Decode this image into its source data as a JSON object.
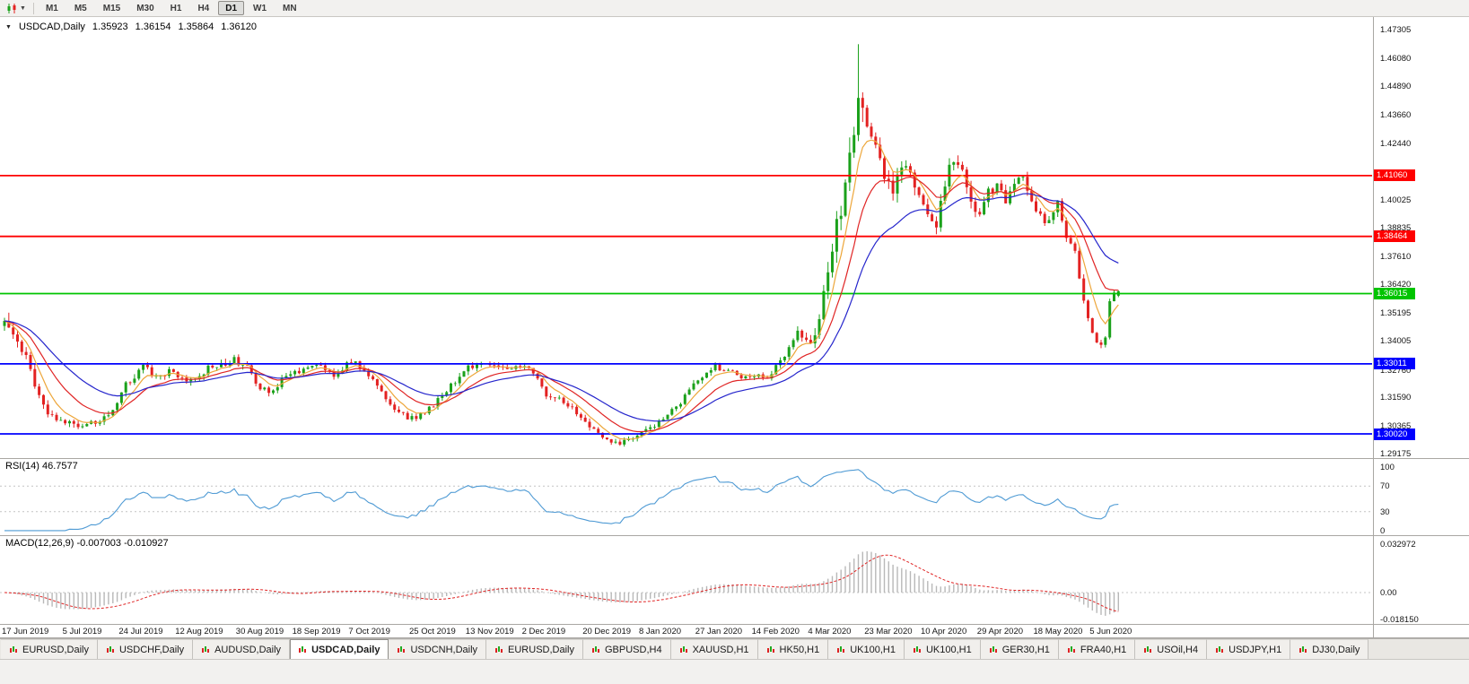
{
  "toolbar": {
    "timeframes": [
      {
        "label": "M1",
        "active": false
      },
      {
        "label": "M5",
        "active": false
      },
      {
        "label": "M15",
        "active": false
      },
      {
        "label": "M30",
        "active": false
      },
      {
        "label": "H1",
        "active": false
      },
      {
        "label": "H4",
        "active": false
      },
      {
        "label": "D1",
        "active": true
      },
      {
        "label": "W1",
        "active": false
      },
      {
        "label": "MN",
        "active": false
      }
    ]
  },
  "chart_header": {
    "symbol": "USDCAD,Daily",
    "open": "1.35923",
    "high": "1.36154",
    "low": "1.35864",
    "close": "1.36120"
  },
  "rsi_pane": {
    "title": "RSI(14) 46.7577",
    "period": 14,
    "levels": [
      70,
      30
    ],
    "scale": [
      "100",
      "70",
      "30",
      "0"
    ],
    "line_color": "#4e9ad4"
  },
  "macd_pane": {
    "title": "MACD(12,26,9) -0.007003 -0.010927",
    "fast": 12,
    "slow": 26,
    "signal": 9,
    "scale_max": "0.032972",
    "scale_zero": "0.00",
    "scale_min": "-0.018150",
    "histogram_color": "#b8b8b8",
    "signal_color": "#e02525"
  },
  "tabs": {
    "items": [
      {
        "label": "EURUSD,Daily",
        "active": false
      },
      {
        "label": "USDCHF,Daily",
        "active": false
      },
      {
        "label": "AUDUSD,Daily",
        "active": false
      },
      {
        "label": "USDCAD,Daily",
        "active": true
      },
      {
        "label": "USDCNH,Daily",
        "active": false
      },
      {
        "label": "EURUSD,Daily",
        "active": false
      },
      {
        "label": "GBPUSD,H4",
        "active": false
      },
      {
        "label": "XAUUSD,H1",
        "active": false
      },
      {
        "label": "HK50,H1",
        "active": false
      },
      {
        "label": "UK100,H1",
        "active": false
      },
      {
        "label": "UK100,H1",
        "active": false
      },
      {
        "label": "GER30,H1",
        "active": false
      },
      {
        "label": "FRA40,H1",
        "active": false
      },
      {
        "label": "USOil,H4",
        "active": false
      },
      {
        "label": "USDJPY,H1",
        "active": false
      },
      {
        "label": "DJ30,Daily",
        "active": false
      }
    ]
  },
  "chart_data": {
    "type": "candlestick",
    "title": "USDCAD Daily",
    "symbol": "USDCAD",
    "timeframe": "D1",
    "bars": 258,
    "seed": 20200612,
    "candle_up_color": "#1ba11b",
    "candle_down_color": "#e32222",
    "price_scale": {
      "top_value": 1.47305,
      "bottom_value": 1.29175,
      "ticks": [
        "1.47305",
        "1.46080",
        "1.44890",
        "1.43660",
        "1.42440",
        "1.40025",
        "1.38835",
        "1.37610",
        "1.36420",
        "1.35195",
        "1.34005",
        "1.32760",
        "1.31590",
        "1.30365",
        "1.29175"
      ]
    },
    "horizontal_lines": [
      {
        "value": 1.4106,
        "label": "1.41060",
        "color": "#fe0000"
      },
      {
        "value": 1.38464,
        "label": "1.38464",
        "color": "#fe0000"
      },
      {
        "value": 1.36015,
        "label": "1.36015",
        "color": "#00c400"
      },
      {
        "value": 1.33011,
        "label": "1.33011",
        "color": "#0000fe"
      },
      {
        "value": 1.3002,
        "label": "1.30020",
        "color": "#0000fe"
      }
    ],
    "moving_averages": [
      {
        "period": 6,
        "color": "#eda63a"
      },
      {
        "period": 14,
        "color": "#e02525"
      },
      {
        "period": 28,
        "color": "#2525cc"
      }
    ],
    "date_axis": [
      {
        "i": 0,
        "label": "17 Jun 2019"
      },
      {
        "i": 14,
        "label": "5 Jul 2019"
      },
      {
        "i": 27,
        "label": "24 Jul 2019"
      },
      {
        "i": 40,
        "label": "12 Aug 2019"
      },
      {
        "i": 54,
        "label": "30 Aug 2019"
      },
      {
        "i": 67,
        "label": "18 Sep 2019"
      },
      {
        "i": 80,
        "label": "7 Oct 2019"
      },
      {
        "i": 94,
        "label": "25 Oct 2019"
      },
      {
        "i": 107,
        "label": "13 Nov 2019"
      },
      {
        "i": 120,
        "label": "2 Dec 2019"
      },
      {
        "i": 134,
        "label": "20 Dec 2019"
      },
      {
        "i": 147,
        "label": "8 Jan 2020"
      },
      {
        "i": 160,
        "label": "27 Jan 2020"
      },
      {
        "i": 173,
        "label": "14 Feb 2020"
      },
      {
        "i": 186,
        "label": "4 Mar 2020"
      },
      {
        "i": 199,
        "label": "23 Mar 2020"
      },
      {
        "i": 212,
        "label": "10 Apr 2020"
      },
      {
        "i": 225,
        "label": "29 Apr 2020"
      },
      {
        "i": 238,
        "label": "18 May 2020"
      },
      {
        "i": 251,
        "label": "5 Jun 2020"
      }
    ],
    "price_path_anchors": [
      [
        0,
        1.3465,
        0.0038
      ],
      [
        2,
        1.343,
        0.0036
      ],
      [
        5,
        1.333,
        0.0034
      ],
      [
        8,
        1.316,
        0.003
      ],
      [
        11,
        1.307,
        0.0026
      ],
      [
        14,
        1.3055,
        0.0024
      ],
      [
        18,
        1.304,
        0.0024
      ],
      [
        22,
        1.306,
        0.0024
      ],
      [
        25,
        1.311,
        0.0026
      ],
      [
        28,
        1.321,
        0.0028
      ],
      [
        32,
        1.329,
        0.0028
      ],
      [
        35,
        1.324,
        0.0028
      ],
      [
        38,
        1.327,
        0.0026
      ],
      [
        41,
        1.3235,
        0.0026
      ],
      [
        44,
        1.3225,
        0.0026
      ],
      [
        47,
        1.328,
        0.0026
      ],
      [
        50,
        1.33,
        0.0026
      ],
      [
        53,
        1.332,
        0.0026
      ],
      [
        56,
        1.329,
        0.0026
      ],
      [
        59,
        1.32,
        0.0026
      ],
      [
        61,
        1.3175,
        0.0024
      ],
      [
        64,
        1.323,
        0.0024
      ],
      [
        67,
        1.3265,
        0.0024
      ],
      [
        70,
        1.329,
        0.0022
      ],
      [
        73,
        1.33,
        0.0022
      ],
      [
        76,
        1.325,
        0.0024
      ],
      [
        79,
        1.33,
        0.0024
      ],
      [
        81,
        1.331,
        0.0024
      ],
      [
        84,
        1.326,
        0.0024
      ],
      [
        87,
        1.318,
        0.0024
      ],
      [
        90,
        1.311,
        0.0022
      ],
      [
        93,
        1.307,
        0.0022
      ],
      [
        95,
        1.3065,
        0.0022
      ],
      [
        98,
        1.311,
        0.0022
      ],
      [
        101,
        1.316,
        0.0022
      ],
      [
        104,
        1.323,
        0.0022
      ],
      [
        107,
        1.3285,
        0.0022
      ],
      [
        110,
        1.33,
        0.002
      ],
      [
        113,
        1.3295,
        0.002
      ],
      [
        116,
        1.327,
        0.002
      ],
      [
        119,
        1.329,
        0.002
      ],
      [
        122,
        1.327,
        0.0022
      ],
      [
        125,
        1.317,
        0.0022
      ],
      [
        128,
        1.316,
        0.002
      ],
      [
        131,
        1.311,
        0.002
      ],
      [
        134,
        1.306,
        0.002
      ],
      [
        137,
        1.3,
        0.0018
      ],
      [
        140,
        1.297,
        0.0016
      ],
      [
        142,
        1.2958,
        0.0016
      ],
      [
        145,
        1.2985,
        0.0018
      ],
      [
        147,
        1.3015,
        0.0018
      ],
      [
        150,
        1.304,
        0.0018
      ],
      [
        153,
        1.308,
        0.0018
      ],
      [
        156,
        1.314,
        0.002
      ],
      [
        159,
        1.3215,
        0.002
      ],
      [
        161,
        1.324,
        0.002
      ],
      [
        164,
        1.329,
        0.002
      ],
      [
        167,
        1.327,
        0.0018
      ],
      [
        170,
        1.3245,
        0.0018
      ],
      [
        173,
        1.3255,
        0.0018
      ],
      [
        176,
        1.324,
        0.0018
      ],
      [
        179,
        1.331,
        0.0024
      ],
      [
        181,
        1.338,
        0.0028
      ],
      [
        183,
        1.343,
        0.003
      ],
      [
        185,
        1.3395,
        0.003
      ],
      [
        186,
        1.338,
        0.0032
      ],
      [
        188,
        1.35,
        0.005
      ],
      [
        190,
        1.368,
        0.006
      ],
      [
        192,
        1.39,
        0.007
      ],
      [
        194,
        1.404,
        0.008
      ],
      [
        196,
        1.433,
        0.0095
      ],
      [
        197,
        1.448,
        0.01
      ],
      [
        198,
        1.442,
        0.009
      ],
      [
        199,
        1.435,
        0.0085
      ],
      [
        201,
        1.423,
        0.007
      ],
      [
        203,
        1.409,
        0.006
      ],
      [
        205,
        1.403,
        0.0055
      ],
      [
        207,
        1.415,
        0.005
      ],
      [
        209,
        1.41,
        0.0048
      ],
      [
        211,
        1.402,
        0.0046
      ],
      [
        213,
        1.394,
        0.0044
      ],
      [
        215,
        1.389,
        0.0044
      ],
      [
        217,
        1.408,
        0.0044
      ],
      [
        219,
        1.418,
        0.0042
      ],
      [
        221,
        1.411,
        0.004
      ],
      [
        223,
        1.4,
        0.004
      ],
      [
        225,
        1.3945,
        0.0038
      ],
      [
        227,
        1.404,
        0.0038
      ],
      [
        229,
        1.4065,
        0.0036
      ],
      [
        231,
        1.399,
        0.0034
      ],
      [
        233,
        1.407,
        0.0034
      ],
      [
        235,
        1.41,
        0.0032
      ],
      [
        237,
        1.4,
        0.0032
      ],
      [
        239,
        1.393,
        0.003
      ],
      [
        241,
        1.3905,
        0.003
      ],
      [
        243,
        1.399,
        0.0028
      ],
      [
        245,
        1.384,
        0.0028
      ],
      [
        247,
        1.378,
        0.0028
      ],
      [
        249,
        1.356,
        0.0028
      ],
      [
        251,
        1.344,
        0.0026
      ],
      [
        253,
        1.337,
        0.0024
      ],
      [
        254,
        1.3405,
        0.0022
      ],
      [
        255,
        1.3575,
        0.002
      ],
      [
        256,
        1.36,
        0.0014
      ],
      [
        257,
        1.3612,
        0.001
      ]
    ],
    "overrides": {
      "1": {
        "high": 1.352
      },
      "197": {
        "high": 1.4668
      },
      "257": {
        "open": 1.35923,
        "high": 1.36154,
        "low": 1.35864,
        "close": 1.3612
      }
    }
  }
}
